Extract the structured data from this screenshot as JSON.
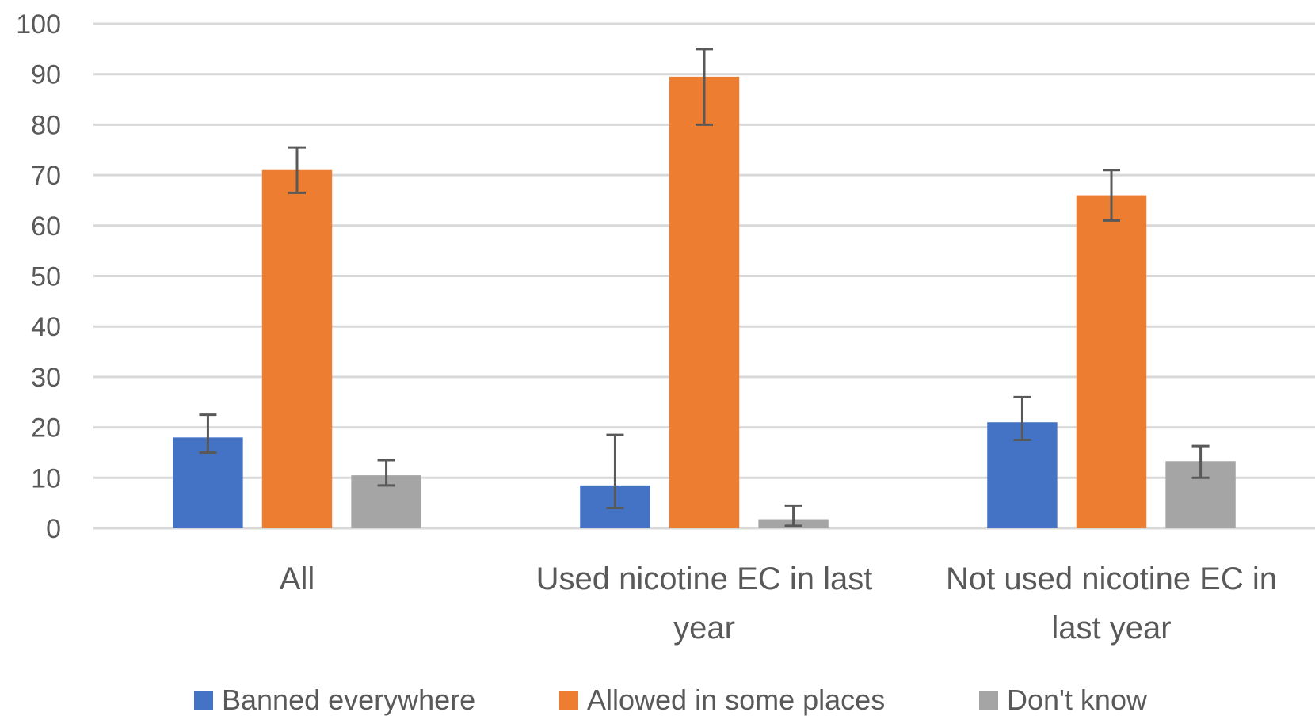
{
  "chart_data": {
    "type": "bar",
    "categories": [
      [
        "All"
      ],
      [
        "Used nicotine EC in last",
        "year"
      ],
      [
        "Not used  nicotine EC in",
        "last year"
      ]
    ],
    "series": [
      {
        "name": "Banned everywhere",
        "color": "#4472C4",
        "values": [
          18,
          8.5,
          21
        ],
        "err_low": [
          15,
          4,
          17.5
        ],
        "err_high": [
          22.5,
          18.5,
          26
        ]
      },
      {
        "name": "Allowed in some places",
        "color": "#ED7D31",
        "values": [
          71,
          89.5,
          66
        ],
        "err_low": [
          66.5,
          80,
          61
        ],
        "err_high": [
          75.5,
          95,
          71
        ]
      },
      {
        "name": "Don't know",
        "color": "#A5A5A5",
        "values": [
          10.5,
          1.8,
          13.3
        ],
        "err_low": [
          8.5,
          0.5,
          10
        ],
        "err_high": [
          13.5,
          4.5,
          16.3
        ]
      }
    ],
    "yticks": [
      "0",
      "10",
      "20",
      "30",
      "40",
      "50",
      "60",
      "70",
      "80",
      "90",
      "100"
    ],
    "ylim": [
      0,
      100
    ],
    "grid": true,
    "legend": "bottom"
  }
}
